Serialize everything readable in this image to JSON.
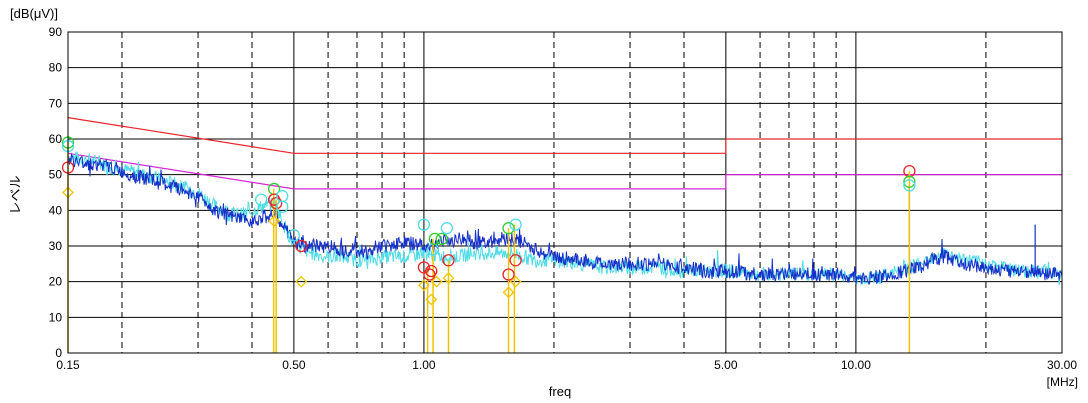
{
  "chart_data": {
    "type": "line",
    "ylabel": "レベル",
    "yunit": "[dB(μV)]",
    "xlabel": "freq",
    "xunit": "[MHz]",
    "xscale": "log",
    "xlim": [
      0.15,
      30
    ],
    "ylim": [
      0,
      90
    ],
    "yticks": [
      0,
      10,
      20,
      30,
      40,
      50,
      60,
      70,
      80,
      90
    ],
    "xticks": [
      {
        "v": 0.15,
        "label": "0.15"
      },
      {
        "v": 0.5,
        "label": "0.50"
      },
      {
        "v": 1,
        "label": "1.00"
      },
      {
        "v": 5,
        "label": "5.00"
      },
      {
        "v": 10,
        "label": "10.00"
      },
      {
        "v": 30,
        "label": "30.00"
      }
    ],
    "xgrid_solid": [
      0.5,
      1,
      5,
      10
    ],
    "xgrid_dashed": [
      0.2,
      0.3,
      0.4,
      0.6,
      0.7,
      0.8,
      0.9,
      2,
      3,
      4,
      6,
      7,
      8,
      9,
      20
    ],
    "limits": [
      {
        "color": "#e8262a",
        "points": [
          [
            0.15,
            66
          ],
          [
            0.5,
            56
          ],
          [
            5,
            56
          ],
          [
            5,
            60
          ],
          [
            30,
            60
          ]
        ]
      },
      {
        "color": "#d726d7",
        "points": [
          [
            0.15,
            56
          ],
          [
            0.5,
            46
          ],
          [
            5,
            46
          ],
          [
            5,
            50
          ],
          [
            30,
            50
          ]
        ]
      }
    ],
    "series": [
      {
        "color": "#1530c8",
        "x": [
          0.15,
          0.17,
          0.19,
          0.21,
          0.24,
          0.27,
          0.3,
          0.33,
          0.36,
          0.39,
          0.42,
          0.45,
          0.47,
          0.5,
          0.55,
          0.6,
          0.65,
          0.7,
          0.75,
          0.8,
          0.9,
          1.0,
          1.1,
          1.2,
          1.3,
          1.4,
          1.5,
          1.6,
          1.7,
          1.8,
          2.0,
          2.3,
          2.6,
          3.0,
          3.5,
          4.0,
          4.5,
          5.0,
          6.0,
          7.0,
          8.0,
          9.0,
          10.0,
          11.0,
          12.0,
          13.0,
          14.0,
          15.0,
          16.0,
          18.0,
          20.0,
          22.0,
          24.0,
          26.0,
          28.0,
          30.0
        ],
        "y": [
          54,
          53,
          52,
          50,
          48,
          46,
          44,
          40,
          38,
          37,
          38,
          39,
          36,
          31,
          30,
          30,
          29,
          29,
          28,
          30,
          31,
          30,
          31,
          32,
          31,
          31,
          32,
          32,
          31,
          29,
          27,
          26,
          25,
          25,
          25,
          24,
          23,
          23,
          22,
          22,
          22,
          22,
          21,
          21,
          22,
          23,
          24,
          26,
          27,
          25,
          24,
          23,
          23,
          23,
          22,
          22
        ]
      },
      {
        "color": "#4fdce6",
        "x": [
          0.15,
          0.17,
          0.19,
          0.21,
          0.24,
          0.27,
          0.3,
          0.33,
          0.36,
          0.39,
          0.42,
          0.45,
          0.47,
          0.5,
          0.55,
          0.6,
          0.65,
          0.7,
          0.75,
          0.8,
          0.9,
          1.0,
          1.1,
          1.2,
          1.3,
          1.4,
          1.5,
          1.6,
          1.7,
          1.8,
          2.0,
          2.3,
          2.6,
          3.0,
          3.5,
          4.0,
          4.5,
          5.0,
          6.0,
          7.0,
          8.0,
          9.0,
          10.0,
          11.0,
          12.0,
          13.0,
          14.0,
          15.0,
          16.0,
          18.0,
          20.0,
          22.0,
          24.0,
          26.0,
          28.0,
          30.0
        ],
        "y": [
          55,
          54,
          52,
          51,
          49,
          47,
          45,
          41,
          39,
          39,
          41,
          42,
          37,
          30,
          28,
          27,
          27,
          26,
          26,
          27,
          27,
          28,
          27,
          27,
          28,
          28,
          28,
          28,
          27,
          26,
          26,
          25,
          24,
          24,
          24,
          23,
          23,
          23,
          22,
          22,
          22,
          22,
          21,
          21,
          22,
          24,
          25,
          27,
          28,
          26,
          25,
          24,
          23,
          23,
          23,
          22
        ]
      }
    ],
    "spikes": [
      {
        "x": 13.3,
        "y": 47
      },
      {
        "x": 26.0,
        "y": 36
      }
    ],
    "markers": [
      {
        "x": 0.15,
        "level": 59,
        "color": "#2ecc2e",
        "shape": "circle"
      },
      {
        "x": 0.15,
        "level": 58,
        "color": "#4fdce6",
        "shape": "circle"
      },
      {
        "x": 0.15,
        "level": 52,
        "color": "#e8262a",
        "shape": "circle"
      },
      {
        "x": 0.15,
        "level": 45,
        "color": "#f2c400",
        "shape": "diamond"
      },
      {
        "x": 0.45,
        "level": 46,
        "color": "#2ecc2e",
        "shape": "circle"
      },
      {
        "x": 0.45,
        "level": 43,
        "color": "#e8262a",
        "shape": "circle"
      },
      {
        "x": 0.455,
        "level": 42,
        "color": "#e8262a",
        "shape": "circle"
      },
      {
        "x": 0.45,
        "level": 37,
        "color": "#f2c400",
        "shape": "diamond"
      },
      {
        "x": 0.47,
        "level": 41,
        "color": "#4fdce6",
        "shape": "circle"
      },
      {
        "x": 0.47,
        "level": 44,
        "color": "#4fdce6",
        "shape": "circle"
      },
      {
        "x": 0.42,
        "level": 43,
        "color": "#4fdce6",
        "shape": "circle"
      },
      {
        "x": 0.5,
        "level": 33,
        "color": "#4fdce6",
        "shape": "circle"
      },
      {
        "x": 0.52,
        "level": 30,
        "color": "#e8262a",
        "shape": "circle"
      },
      {
        "x": 0.52,
        "level": 20,
        "color": "#f2c400",
        "shape": "diamond"
      },
      {
        "x": 1.0,
        "level": 36,
        "color": "#4fdce6",
        "shape": "circle"
      },
      {
        "x": 1.0,
        "level": 24,
        "color": "#e8262a",
        "shape": "circle"
      },
      {
        "x": 1.0,
        "level": 19,
        "color": "#f2c400",
        "shape": "diamond"
      },
      {
        "x": 1.03,
        "level": 22,
        "color": "#e8262a",
        "shape": "circle"
      },
      {
        "x": 1.04,
        "level": 23,
        "color": "#e8262a",
        "shape": "circle"
      },
      {
        "x": 1.04,
        "level": 15,
        "color": "#f2c400",
        "shape": "diamond"
      },
      {
        "x": 1.05,
        "level": 29,
        "color": "#4fdce6",
        "shape": "circle"
      },
      {
        "x": 1.06,
        "level": 32,
        "color": "#2ecc2e",
        "shape": "circle"
      },
      {
        "x": 1.07,
        "level": 20,
        "color": "#f2c400",
        "shape": "diamond"
      },
      {
        "x": 1.1,
        "level": 32,
        "color": "#2ecc2e",
        "shape": "circle"
      },
      {
        "x": 1.13,
        "level": 35,
        "color": "#4fdce6",
        "shape": "circle"
      },
      {
        "x": 1.14,
        "level": 26,
        "color": "#e8262a",
        "shape": "circle"
      },
      {
        "x": 1.14,
        "level": 21,
        "color": "#f2c400",
        "shape": "diamond"
      },
      {
        "x": 1.57,
        "level": 35,
        "color": "#2ecc2e",
        "shape": "circle"
      },
      {
        "x": 1.57,
        "level": 22,
        "color": "#e8262a",
        "shape": "circle"
      },
      {
        "x": 1.57,
        "level": 17,
        "color": "#f2c400",
        "shape": "diamond"
      },
      {
        "x": 1.63,
        "level": 36,
        "color": "#4fdce6",
        "shape": "circle"
      },
      {
        "x": 1.63,
        "level": 26,
        "color": "#e8262a",
        "shape": "circle"
      },
      {
        "x": 1.63,
        "level": 20,
        "color": "#f2c400",
        "shape": "diamond"
      },
      {
        "x": 13.3,
        "level": 51,
        "color": "#e8262a",
        "shape": "circle"
      },
      {
        "x": 13.3,
        "level": 48,
        "color": "#2ecc2e",
        "shape": "circle"
      },
      {
        "x": 13.3,
        "level": 47,
        "color": "#4fdce6",
        "shape": "circle"
      }
    ],
    "stems": [
      {
        "x": 0.15,
        "level": 59
      },
      {
        "x": 0.449,
        "level": 46
      },
      {
        "x": 0.455,
        "level": 43
      },
      {
        "x": 1.02,
        "level": 24
      },
      {
        "x": 1.05,
        "level": 32
      },
      {
        "x": 1.14,
        "level": 26
      },
      {
        "x": 1.57,
        "level": 35
      },
      {
        "x": 1.62,
        "level": 36
      },
      {
        "x": 13.3,
        "level": 51
      }
    ],
    "stem_color": "#f2c400"
  }
}
